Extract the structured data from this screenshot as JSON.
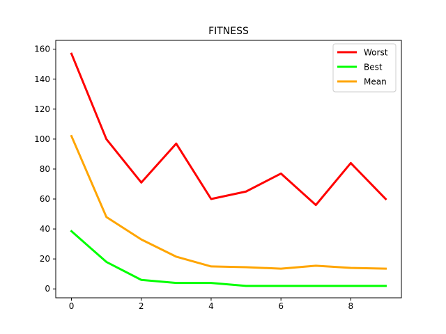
{
  "chart_data": {
    "type": "line",
    "title": "FITNESS",
    "xlabel": "",
    "ylabel": "",
    "xlim": [
      -0.45,
      9.45
    ],
    "ylim": [
      -5.95,
      165.9
    ],
    "xticks": [
      0,
      2,
      4,
      6,
      8
    ],
    "yticks": [
      0,
      20,
      40,
      60,
      80,
      100,
      120,
      140,
      160
    ],
    "legend_position": "top-right",
    "grid": false,
    "x": [
      0,
      1,
      2,
      3,
      4,
      5,
      6,
      7,
      8,
      9
    ],
    "series": [
      {
        "name": "Worst",
        "color": "#ff0000",
        "values": [
          157,
          100,
          71,
          97,
          60,
          65,
          77,
          56,
          84,
          60
        ]
      },
      {
        "name": "Best",
        "color": "#00ff00",
        "values": [
          38.5,
          18,
          6,
          4,
          4,
          2,
          2,
          2,
          2,
          2
        ]
      },
      {
        "name": "Mean",
        "color": "#ffa500",
        "values": [
          102,
          48,
          33,
          21.5,
          15,
          14.5,
          13.5,
          15.5,
          14,
          13.5
        ]
      }
    ]
  }
}
